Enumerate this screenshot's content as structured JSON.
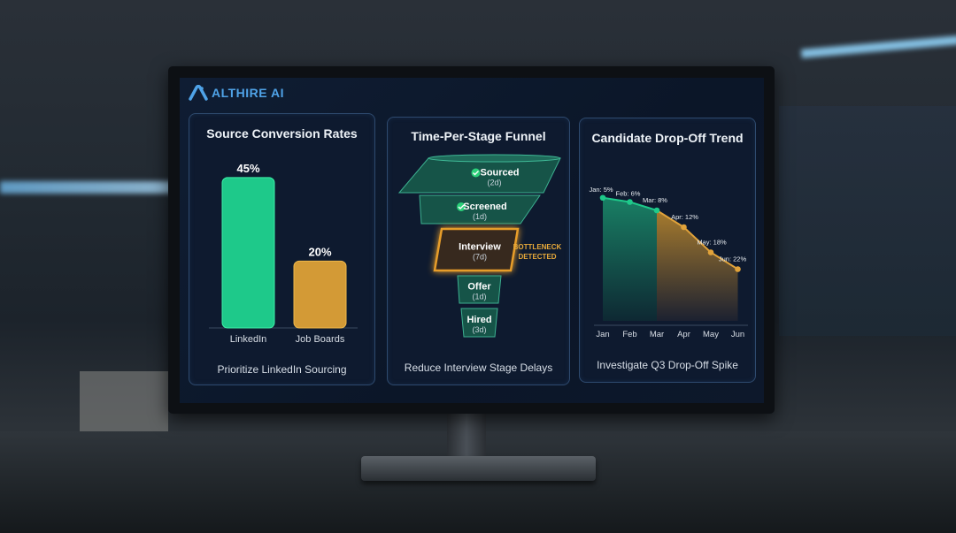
{
  "brand": {
    "name": "ALTHIRE AI"
  },
  "colors": {
    "green": "#1ec98a",
    "amber": "#e0a23a",
    "panel_border": "#2e4a6e",
    "brand_blue": "#4fa3e8"
  },
  "chart_data": [
    {
      "type": "bar",
      "title": "Source Conversion Rates",
      "categories": [
        "LinkedIn",
        "Job Boards"
      ],
      "values": [
        45,
        20
      ],
      "data_labels": [
        "45%",
        "20%"
      ],
      "colors": [
        "#1ec98a",
        "#d39a36"
      ],
      "ylim": [
        0,
        50
      ],
      "caption": "Prioritize LinkedIn Sourcing"
    },
    {
      "type": "funnel",
      "title": "Time-Per-Stage Funnel",
      "stages": [
        {
          "label": "Sourced",
          "duration": "(2d)",
          "days": 2,
          "status": "done",
          "icon": "check-circle-icon"
        },
        {
          "label": "Screened",
          "duration": "(1d)",
          "days": 1,
          "status": "done",
          "icon": "check-circle-icon"
        },
        {
          "label": "Interview",
          "duration": "(7d)",
          "days": 7,
          "status": "bottleneck"
        },
        {
          "label": "Offer",
          "duration": "(1d)",
          "days": 1,
          "status": "pending"
        },
        {
          "label": "Hired",
          "duration": "(3d)",
          "days": 3,
          "status": "pending"
        }
      ],
      "annotation": [
        "BOTTLENECK",
        "DETECTED"
      ],
      "caption": "Reduce Interview Stage Delays"
    },
    {
      "type": "area",
      "title": "Candidate Drop-Off Trend",
      "categories": [
        "Jan",
        "Feb",
        "Mar",
        "Apr",
        "May",
        "Jun"
      ],
      "values": [
        5,
        6,
        8,
        12,
        18,
        22
      ],
      "point_labels": [
        "Jan: 5%",
        "Feb: 6%",
        "Mar: 8%",
        "Apr: 12%",
        "May: 18%",
        "Jun: 22%"
      ],
      "y_inverted": true,
      "segments": [
        {
          "range": [
            "Jan",
            "Mar"
          ],
          "color": "#1ec98a"
        },
        {
          "range": [
            "Mar",
            "Jun"
          ],
          "color": "#e0a23a"
        }
      ],
      "caption": "Investigate Q3 Drop-Off Spike"
    }
  ]
}
